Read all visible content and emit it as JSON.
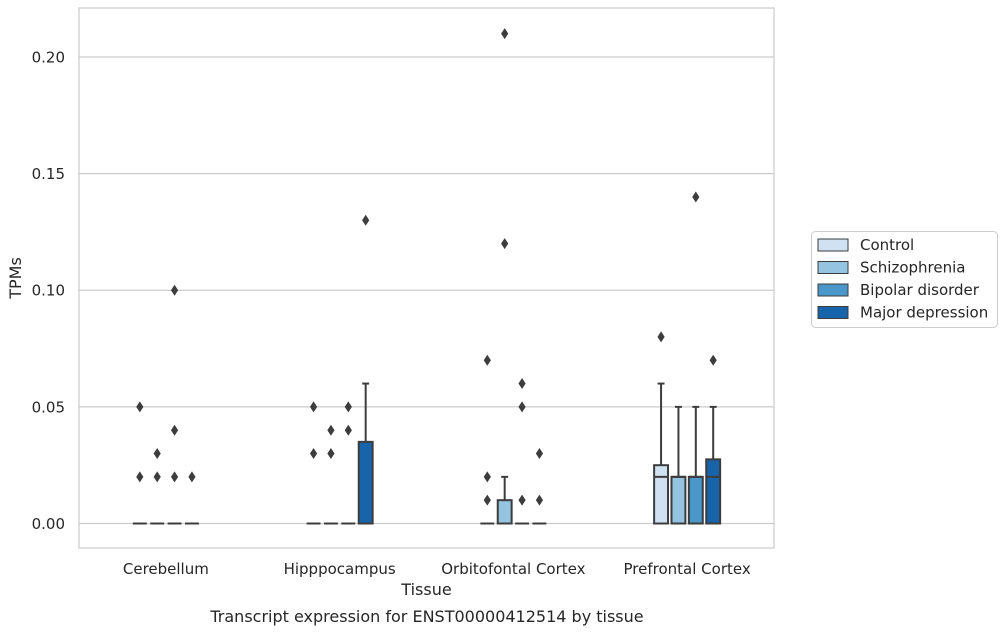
{
  "chart_data": {
    "type": "box",
    "title": "Transcript expression for ENST00000412514 by tissue",
    "xlabel": "Tissue",
    "ylabel": "TPMs",
    "ylim": [
      -0.0105,
      0.221
    ],
    "yticks": [
      0.0,
      0.05,
      0.1,
      0.15,
      0.2
    ],
    "ytick_labels": [
      "0.00",
      "0.05",
      "0.10",
      "0.15",
      "0.20"
    ],
    "grid": true,
    "legend_position": "right",
    "categories": [
      "Cerebellum",
      "Hipppocampus",
      "Orbitofontal Cortex",
      "Prefrontal Cortex"
    ],
    "series": [
      {
        "name": "Control",
        "color": "#d0e1f2",
        "boxes": [
          {
            "q1": 0,
            "median": 0,
            "q3": 0,
            "whislo": 0,
            "whishi": 0,
            "fliers": [
              0.02,
              0.05
            ]
          },
          {
            "q1": 0,
            "median": 0,
            "q3": 0,
            "whislo": 0,
            "whishi": 0,
            "fliers": [
              0.03,
              0.05
            ]
          },
          {
            "q1": 0,
            "median": 0,
            "q3": 0,
            "whislo": 0,
            "whishi": 0,
            "fliers": [
              0.01,
              0.02,
              0.07
            ]
          },
          {
            "q1": 0,
            "median": 0.02,
            "q3": 0.025,
            "whislo": 0,
            "whishi": 0.06,
            "fliers": [
              0.08
            ]
          }
        ]
      },
      {
        "name": "Schizophrenia",
        "color": "#94c4df",
        "boxes": [
          {
            "q1": 0,
            "median": 0,
            "q3": 0,
            "whislo": 0,
            "whishi": 0,
            "fliers": [
              0.02,
              0.03
            ]
          },
          {
            "q1": 0,
            "median": 0,
            "q3": 0,
            "whislo": 0,
            "whishi": 0,
            "fliers": [
              0.03,
              0.04
            ]
          },
          {
            "q1": 0,
            "median": 0,
            "q3": 0.01,
            "whislo": 0,
            "whishi": 0.02,
            "fliers": [
              0.12,
              0.21
            ]
          },
          {
            "q1": 0,
            "median": 0.02,
            "q3": 0.02,
            "whislo": 0,
            "whishi": 0.05,
            "fliers": []
          }
        ]
      },
      {
        "name": "Bipolar disorder",
        "color": "#4a98c9",
        "boxes": [
          {
            "q1": 0,
            "median": 0,
            "q3": 0,
            "whislo": 0,
            "whishi": 0,
            "fliers": [
              0.02,
              0.04,
              0.1
            ]
          },
          {
            "q1": 0,
            "median": 0,
            "q3": 0,
            "whislo": 0,
            "whishi": 0,
            "fliers": [
              0.04,
              0.05
            ]
          },
          {
            "q1": 0,
            "median": 0,
            "q3": 0,
            "whislo": 0,
            "whishi": 0,
            "fliers": [
              0.01,
              0.05,
              0.06
            ]
          },
          {
            "q1": 0,
            "median": 0.02,
            "q3": 0.02,
            "whislo": 0,
            "whishi": 0.05,
            "fliers": [
              0.14
            ]
          }
        ]
      },
      {
        "name": "Major depression",
        "color": "#1764ab",
        "boxes": [
          {
            "q1": 0,
            "median": 0,
            "q3": 0,
            "whislo": 0,
            "whishi": 0,
            "fliers": [
              0.02
            ]
          },
          {
            "q1": 0,
            "median": 0,
            "q3": 0.035,
            "whislo": 0,
            "whishi": 0.06,
            "fliers": [
              0.13
            ]
          },
          {
            "q1": 0,
            "median": 0,
            "q3": 0,
            "whislo": 0,
            "whishi": 0,
            "fliers": [
              0.01,
              0.03
            ]
          },
          {
            "q1": 0,
            "median": 0.02,
            "q3": 0.0275,
            "whislo": 0,
            "whishi": 0.05,
            "fliers": [
              0.07
            ]
          }
        ]
      }
    ]
  }
}
